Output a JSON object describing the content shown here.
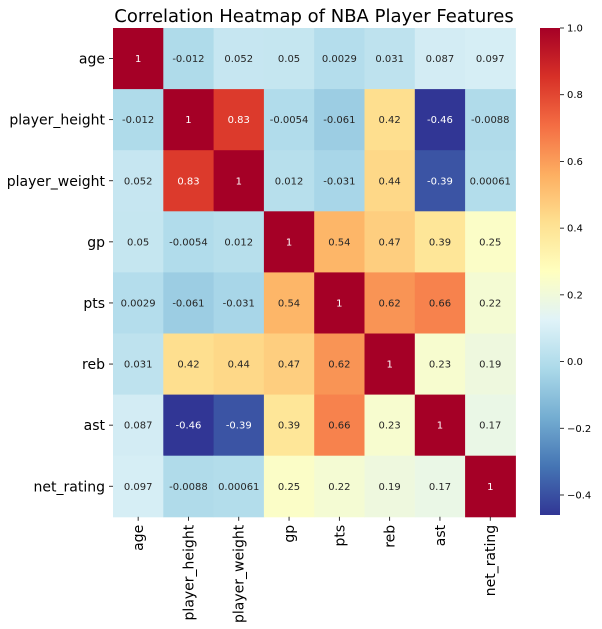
{
  "chart_data": {
    "type": "heatmap",
    "title": "Correlation Heatmap of NBA Player Features",
    "xlabel": "",
    "ylabel": "",
    "labels": [
      "age",
      "player_height",
      "player_weight",
      "gp",
      "pts",
      "reb",
      "ast",
      "net_rating"
    ],
    "values": [
      [
        1,
        -0.012,
        0.052,
        0.05,
        0.0029,
        0.031,
        0.087,
        0.097
      ],
      [
        -0.012,
        1,
        0.83,
        -0.0054,
        -0.061,
        0.42,
        -0.46,
        -0.0088
      ],
      [
        0.052,
        0.83,
        1,
        0.012,
        -0.031,
        0.44,
        -0.39,
        0.00061
      ],
      [
        0.05,
        -0.0054,
        0.012,
        1,
        0.54,
        0.47,
        0.39,
        0.25
      ],
      [
        0.0029,
        -0.061,
        -0.031,
        0.54,
        1,
        0.62,
        0.66,
        0.22
      ],
      [
        0.031,
        0.42,
        0.44,
        0.47,
        0.62,
        1,
        0.23,
        0.19
      ],
      [
        0.087,
        -0.46,
        -0.39,
        0.39,
        0.66,
        0.23,
        1,
        0.17
      ],
      [
        0.097,
        -0.0088,
        0.00061,
        0.25,
        0.22,
        0.19,
        0.17,
        1
      ]
    ],
    "colormap": "RdYlBu_r",
    "vmin": -0.46,
    "vmax": 1.0,
    "colorbar_ticks": [
      1.0,
      0.8,
      0.6,
      0.4,
      0.2,
      0.0,
      -0.2,
      -0.4
    ],
    "colorbar_tick_labels": [
      "1.0",
      "0.8",
      "0.6",
      "0.4",
      "0.2",
      "0.0",
      "−0.2",
      "−0.4"
    ],
    "annotations": true
  }
}
